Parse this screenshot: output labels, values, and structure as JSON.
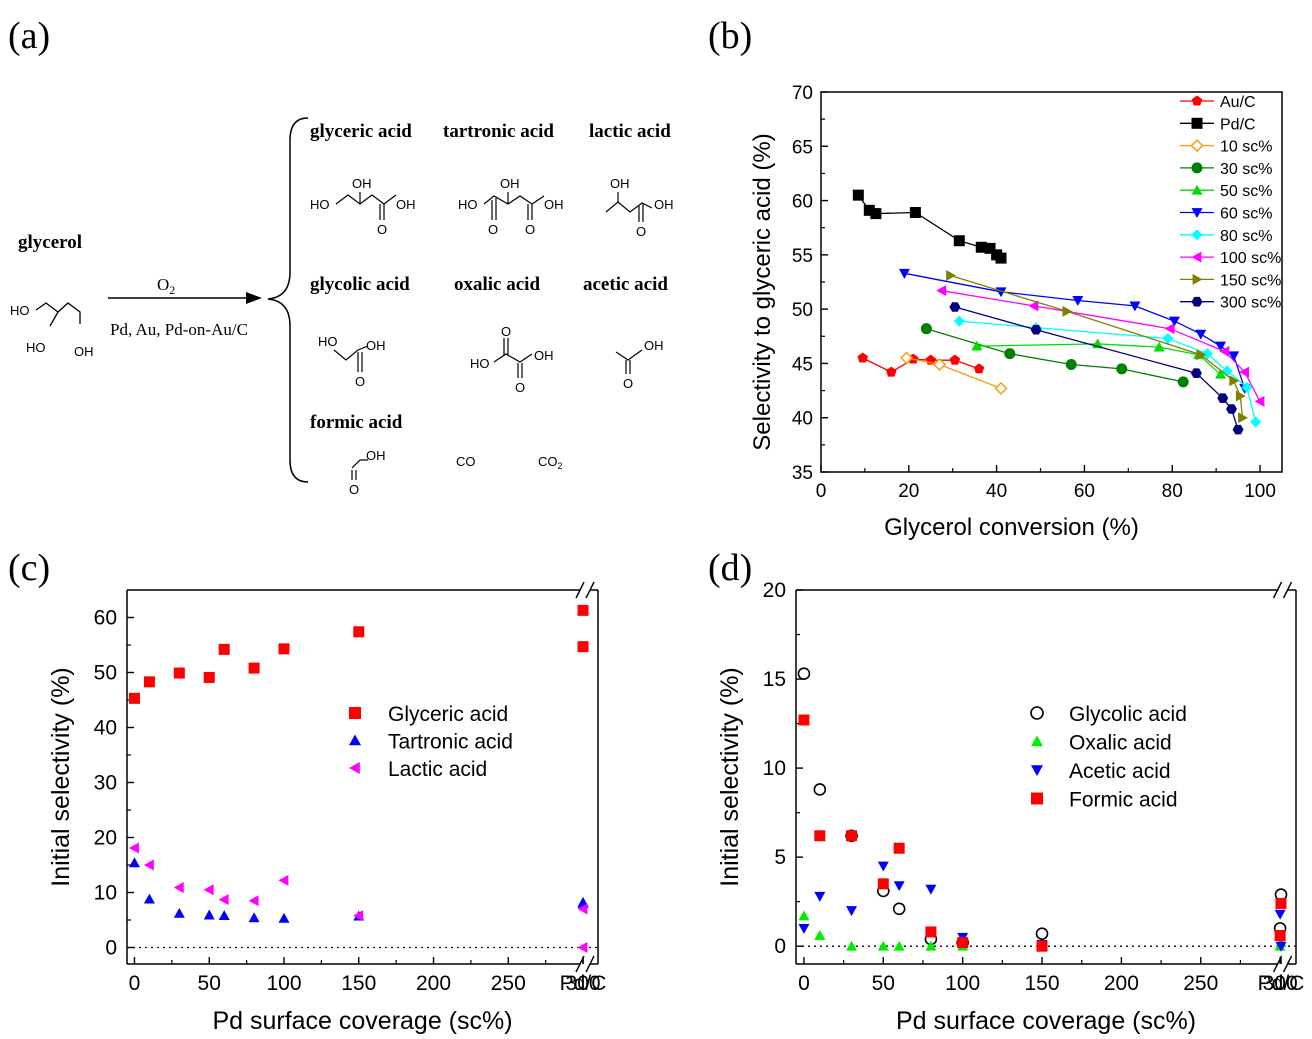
{
  "panel_labels": [
    "(a)",
    "(b)",
    "(c)",
    "(d)"
  ],
  "scheme": {
    "reactant": "glycerol",
    "reagent_top": "O2",
    "reagent_bottom": "Pd, Au, Pd-on-Au/C",
    "products": [
      "glyceric acid",
      "tartronic acid",
      "lactic acid",
      "glycolic acid",
      "oxalic acid",
      "acetic acid",
      "formic acid"
    ],
    "gases": [
      "CO",
      "CO2"
    ],
    "atom_labels": {
      "ho": "HO",
      "oh": "OH",
      "o": "O"
    }
  },
  "chart_data": [
    {
      "panel": "(b)",
      "type": "line",
      "xlabel": "Glycerol conversion (%)",
      "ylabel": "Selectivity to glyceric acid (%)",
      "xlim": [
        0,
        105
      ],
      "ylim": [
        35,
        70
      ],
      "xticks": [
        "0",
        "20",
        "40",
        "60",
        "80",
        "100"
      ],
      "yticks": [
        "35",
        "40",
        "45",
        "50",
        "55",
        "60",
        "65",
        "70"
      ],
      "legend_position": "top-right",
      "series": [
        {
          "name": "Au/C",
          "color": "#ff0000",
          "marker": "pentagon",
          "x": [
            9.5,
            16,
            21,
            25,
            30.5,
            36
          ],
          "y": [
            45.5,
            44.2,
            45.4,
            45.3,
            45.3,
            44.5
          ]
        },
        {
          "name": "Pd/C",
          "color": "#000000",
          "marker": "square",
          "x": [
            8.5,
            11,
            12.5,
            21.5,
            31.5,
            36.5,
            38.5,
            40,
            41
          ],
          "y": [
            60.5,
            59.1,
            58.8,
            58.9,
            56.3,
            55.7,
            55.6,
            55.0,
            54.7
          ]
        },
        {
          "name": "10 sc%",
          "color": "#ff9900",
          "marker": "diamond-open",
          "x": [
            19.5,
            27,
            41
          ],
          "y": [
            45.5,
            44.9,
            42.7
          ]
        },
        {
          "name": "30 sc%",
          "color": "#008000",
          "marker": "circle",
          "x": [
            24,
            43,
            57,
            68.5,
            82.5
          ],
          "y": [
            48.2,
            45.9,
            44.9,
            44.5,
            43.3
          ]
        },
        {
          "name": "50 sc%",
          "color": "#00dd00",
          "marker": "triangle-up",
          "x": [
            35.5,
            63,
            77,
            86,
            91
          ],
          "y": [
            46.6,
            46.8,
            46.5,
            45.8,
            44.0
          ]
        },
        {
          "name": "60 sc%",
          "color": "#0000ff",
          "marker": "triangle-down",
          "x": [
            19,
            41,
            58.5,
            71.5,
            80.5,
            86.5,
            91,
            94,
            96.5
          ],
          "y": [
            53.3,
            51.6,
            50.8,
            50.3,
            48.9,
            47.7,
            46.6,
            45.7,
            42.7
          ]
        },
        {
          "name": "80 sc%",
          "color": "#00ffff",
          "marker": "diamond",
          "x": [
            31.5,
            49,
            79,
            88,
            92.5,
            97,
            99
          ],
          "y": [
            48.9,
            48.3,
            47.3,
            45.9,
            44.3,
            42.8,
            39.6
          ]
        },
        {
          "name": "100 sc%",
          "color": "#ff00ff",
          "marker": "triangle-left",
          "x": [
            27.5,
            48.5,
            79.5,
            92,
            96.5,
            100
          ],
          "y": [
            51.7,
            50.3,
            48.2,
            46.1,
            44.2,
            41.5
          ]
        },
        {
          "name": "150 sc%",
          "color": "#808000",
          "marker": "triangle-right",
          "x": [
            29.5,
            56,
            86.5,
            94,
            95.5,
            96
          ],
          "y": [
            53.1,
            49.8,
            45.8,
            43.4,
            42.0,
            40.0
          ]
        },
        {
          "name": "300 sc%",
          "color": "#000080",
          "marker": "hexagon",
          "x": [
            30.5,
            49,
            85.5,
            91.5,
            93.5,
            95
          ],
          "y": [
            50.2,
            48.1,
            44.1,
            41.8,
            40.8,
            38.9
          ]
        }
      ]
    },
    {
      "panel": "(c)",
      "type": "scatter",
      "xlabel": "Pd surface coverage (sc%)",
      "ylabel": "Initial selectivity (%)",
      "xlim": [
        -5,
        310
      ],
      "ylim": [
        -3,
        65
      ],
      "xticks": [
        "0",
        "50",
        "100",
        "150",
        "200",
        "250",
        "300",
        "Pd/C"
      ],
      "yticks": [
        "0",
        "10",
        "20",
        "30",
        "40",
        "50",
        "60"
      ],
      "axis_break": true,
      "legend_position": "center-right",
      "categories_x": [
        0,
        10,
        30,
        50,
        60,
        80,
        100,
        150,
        300,
        "Pd/C"
      ],
      "series": [
        {
          "name": "Glyceric acid",
          "color": "#ff0000",
          "marker": "square",
          "values": [
            45.3,
            48.3,
            49.9,
            49.1,
            54.2,
            50.8,
            54.3,
            57.4,
            54.7,
            61.3
          ]
        },
        {
          "name": "Tartronic acid",
          "color": "#0000ff",
          "marker": "triangle-up",
          "values": [
            15.4,
            8.8,
            6.2,
            5.9,
            5.8,
            5.4,
            5.3,
            5.7,
            8.2,
            8.0
          ]
        },
        {
          "name": "Lactic acid",
          "color": "#ff00ff",
          "marker": "triangle-left",
          "values": [
            18.1,
            15.0,
            10.9,
            10.5,
            8.7,
            8.5,
            12.2,
            5.8,
            7.0,
            0.0
          ]
        }
      ]
    },
    {
      "panel": "(d)",
      "type": "scatter",
      "xlabel": "Pd surface coverage (sc%)",
      "ylabel": "Initial selectivity (%)",
      "xlim": [
        -5,
        310
      ],
      "ylim": [
        -1,
        20
      ],
      "xticks": [
        "0",
        "50",
        "100",
        "150",
        "200",
        "250",
        "300",
        "Pd/C"
      ],
      "yticks": [
        "0",
        "5",
        "10",
        "15",
        "20"
      ],
      "axis_break": true,
      "legend_position": "center-right",
      "categories_x": [
        0,
        10,
        30,
        50,
        60,
        80,
        100,
        150,
        300,
        "Pd/C"
      ],
      "series": [
        {
          "name": "Glycolic acid",
          "color": "#000000",
          "marker": "circle-open",
          "values": [
            15.3,
            8.8,
            6.2,
            3.1,
            2.1,
            0.4,
            0.2,
            0.7,
            1.0,
            2.9
          ]
        },
        {
          "name": "Oxalic acid",
          "color": "#00ee00",
          "marker": "triangle-up",
          "values": [
            1.7,
            0.6,
            0.0,
            0.0,
            0.0,
            0.0,
            0.0,
            0.0,
            0.0,
            0.2
          ]
        },
        {
          "name": "Acetic acid",
          "color": "#0000ff",
          "marker": "triangle-down",
          "values": [
            1.0,
            2.8,
            2.0,
            4.5,
            3.4,
            3.2,
            0.5,
            0.1,
            1.8,
            0.0
          ]
        },
        {
          "name": "Formic acid",
          "color": "#ff0000",
          "marker": "square",
          "values": [
            12.7,
            6.2,
            6.2,
            3.5,
            5.5,
            0.8,
            0.2,
            0.0,
            0.6,
            2.4
          ]
        }
      ]
    }
  ]
}
